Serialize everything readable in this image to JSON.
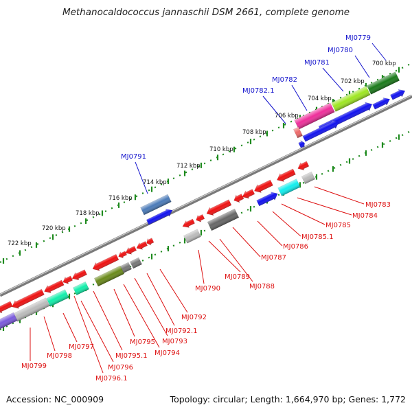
{
  "title": "Methanocaldococcus jannaschii DSM 2661, complete genome",
  "accession": "Accession: NC_000909",
  "summary": "Topology: circular; Length: 1,664,970 bp; Genes: 1,772",
  "colors": {
    "backbone": "#8a8a8a",
    "dotted_ring": "#1e8a1e",
    "plus_label": "#1111cc",
    "minus_label": "#dd1111"
  },
  "kbp_ticks": [
    "700 kbp",
    "702 kbp",
    "704 kbp",
    "706 kbp",
    "708 kbp",
    "710 kbp",
    "712 kbp",
    "714 kbp",
    "716 kbp",
    "718 kbp",
    "720 kbp",
    "722 kbp"
  ],
  "plus_genes": [
    "MJ0779",
    "MJ0780",
    "MJ0781",
    "MJ0782",
    "MJ0782.1",
    "MJ0791"
  ],
  "minus_genes": [
    "MJ0783",
    "MJ0784",
    "MJ0785",
    "MJ0785.1",
    "MJ0786",
    "MJ0787",
    "MJ0788",
    "MJ0789",
    "MJ0790",
    "MJ0792",
    "MJ0792.1",
    "MJ0793",
    "MJ0794",
    "MJ0795",
    "MJ0795.1",
    "MJ0796",
    "MJ0796.1",
    "MJ0797",
    "MJ0798",
    "MJ0799"
  ]
}
